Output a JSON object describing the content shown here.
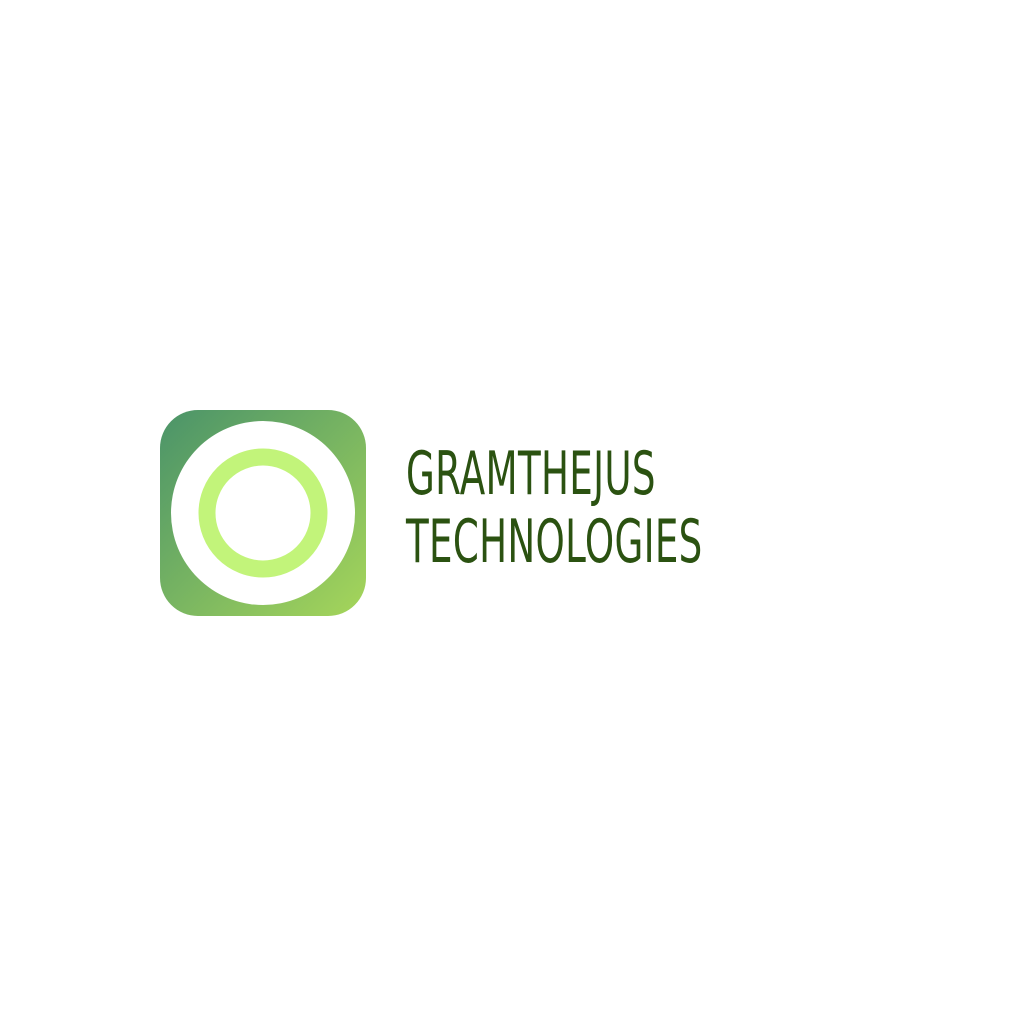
{
  "brand": {
    "name_line_1": "GRAMTHEJUS",
    "name_line_2": "TECHNOLOGIES"
  },
  "logo": {
    "icon": "green-ring-app-icon",
    "gradient_start_color": "#4a9369",
    "gradient_end_color": "#a6d65a",
    "ring_color": "#c2f47a",
    "disc_color": "#ffffff"
  },
  "colors": {
    "text": "#2b5211",
    "background": "#ffffff"
  }
}
